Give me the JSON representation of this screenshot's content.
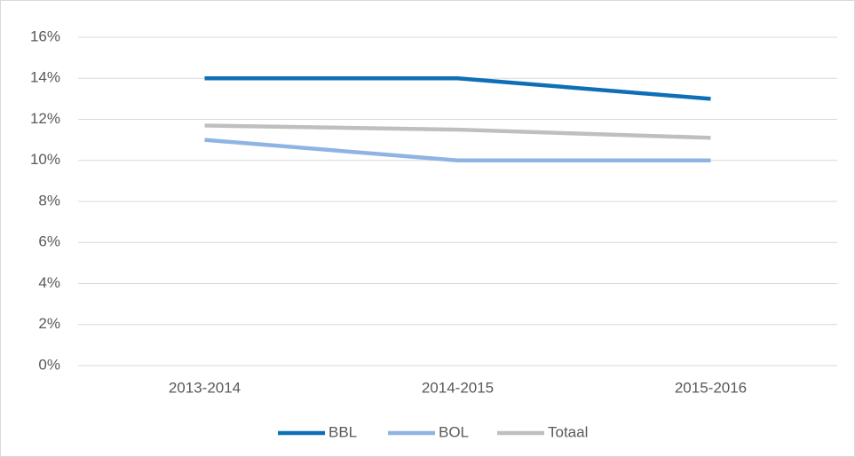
{
  "chart_data": {
    "type": "line",
    "categories": [
      "2013-2014",
      "2014-2015",
      "2015-2016"
    ],
    "series": [
      {
        "name": "BBL",
        "color": "#0f6fb6",
        "values": [
          14,
          14,
          13
        ]
      },
      {
        "name": "BOL",
        "color": "#8fb4e3",
        "values": [
          11,
          10,
          10
        ]
      },
      {
        "name": "Totaal",
        "color": "#bfbfbf",
        "values": [
          11.7,
          11.5,
          11.1
        ]
      }
    ],
    "ylim": [
      0,
      16
    ],
    "yticks": [
      {
        "value": 0,
        "label": "0%"
      },
      {
        "value": 2,
        "label": "2%"
      },
      {
        "value": 4,
        "label": "4%"
      },
      {
        "value": 6,
        "label": "6%"
      },
      {
        "value": 8,
        "label": "8%"
      },
      {
        "value": 10,
        "label": "10%"
      },
      {
        "value": 12,
        "label": "12%"
      },
      {
        "value": 14,
        "label": "14%"
      },
      {
        "value": 16,
        "label": "16%"
      }
    ],
    "grid": true,
    "legend": "bottom"
  }
}
